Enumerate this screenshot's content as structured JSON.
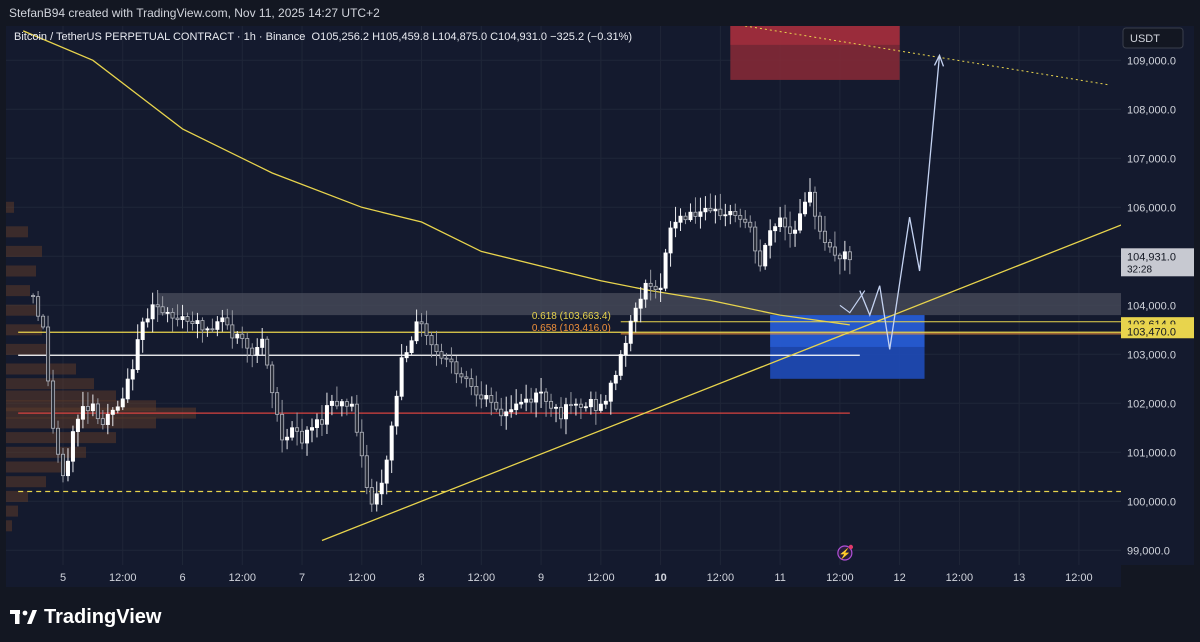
{
  "header": {
    "text": "StefanB94 created with TradingView.com, Nov 11, 2025 14:27 UTC+2"
  },
  "legend": {
    "symbol": "Bitcoin / TetherUS PERPETUAL CONTRACT · 1h · Binance",
    "open": "O105,256.2",
    "high": "H105,459.8",
    "low": "L104,875.0",
    "close": "C104,931.0",
    "change": "−325.2 (−0.31%)"
  },
  "currency": "USDT",
  "brand": "TradingView",
  "colors": {
    "bg": "#141a2e",
    "up": "#ffffff",
    "down": "#b2b5be",
    "yellow": "#e8d44d",
    "red": "#d8433f",
    "blue": "#2962ff",
    "orange": "#f7931a"
  },
  "chart_data": {
    "type": "candlestick",
    "timeframe": "1h",
    "ylim": [
      98700,
      109700
    ],
    "y_ticks": [
      {
        "v": 99000,
        "label": "99,000.0"
      },
      {
        "v": 100000,
        "label": "100,000.0"
      },
      {
        "v": 101000,
        "label": "101,000.0"
      },
      {
        "v": 102000,
        "label": "102,000.0"
      },
      {
        "v": 103000,
        "label": "103,000.0"
      },
      {
        "v": 104000,
        "label": "104,000.0"
      },
      {
        "v": 105000,
        "label": "105,000.0"
      },
      {
        "v": 106000,
        "label": "106,000.0"
      },
      {
        "v": 107000,
        "label": "107,000.0"
      },
      {
        "v": 108000,
        "label": "108,000.0"
      },
      {
        "v": 109000,
        "label": "109,000.0"
      }
    ],
    "x_ticks": [
      {
        "h": 0,
        "label": "5",
        "bold": false
      },
      {
        "h": 12,
        "label": "12:00",
        "bold": false
      },
      {
        "h": 24,
        "label": "6",
        "bold": false
      },
      {
        "h": 36,
        "label": "12:00",
        "bold": false
      },
      {
        "h": 48,
        "label": "7",
        "bold": false
      },
      {
        "h": 60,
        "label": "12:00",
        "bold": false
      },
      {
        "h": 72,
        "label": "8",
        "bold": false
      },
      {
        "h": 84,
        "label": "12:00",
        "bold": false
      },
      {
        "h": 96,
        "label": "9",
        "bold": false
      },
      {
        "h": 108,
        "label": "12:00",
        "bold": false
      },
      {
        "h": 120,
        "label": "10",
        "bold": true
      },
      {
        "h": 132,
        "label": "12:00",
        "bold": false
      },
      {
        "h": 144,
        "label": "11",
        "bold": false
      },
      {
        "h": 156,
        "label": "12:00",
        "bold": false
      },
      {
        "h": 168,
        "label": "12",
        "bold": false
      },
      {
        "h": 180,
        "label": "12:00",
        "bold": false
      },
      {
        "h": 192,
        "label": "13",
        "bold": false
      },
      {
        "h": 204,
        "label": "12:00",
        "bold": false
      }
    ],
    "anchors": [
      {
        "h": -6,
        "p": 104200
      },
      {
        "h": -4,
        "p": 103500
      },
      {
        "h": -2,
        "p": 101500
      },
      {
        "h": 0,
        "p": 100400
      },
      {
        "h": 2,
        "p": 101400
      },
      {
        "h": 4,
        "p": 101900
      },
      {
        "h": 6,
        "p": 102000
      },
      {
        "h": 8,
        "p": 101600
      },
      {
        "h": 10,
        "p": 101800
      },
      {
        "h": 12,
        "p": 102000
      },
      {
        "h": 14,
        "p": 102800
      },
      {
        "h": 16,
        "p": 103600
      },
      {
        "h": 18,
        "p": 104100
      },
      {
        "h": 20,
        "p": 103800
      },
      {
        "h": 22,
        "p": 103700
      },
      {
        "h": 24,
        "p": 103800
      },
      {
        "h": 26,
        "p": 103700
      },
      {
        "h": 28,
        "p": 103500
      },
      {
        "h": 30,
        "p": 103500
      },
      {
        "h": 32,
        "p": 103700
      },
      {
        "h": 34,
        "p": 103400
      },
      {
        "h": 36,
        "p": 103300
      },
      {
        "h": 38,
        "p": 103100
      },
      {
        "h": 40,
        "p": 103200
      },
      {
        "h": 42,
        "p": 102200
      },
      {
        "h": 44,
        "p": 101300
      },
      {
        "h": 46,
        "p": 101500
      },
      {
        "h": 48,
        "p": 101200
      },
      {
        "h": 50,
        "p": 101500
      },
      {
        "h": 52,
        "p": 101700
      },
      {
        "h": 54,
        "p": 102100
      },
      {
        "h": 56,
        "p": 102000
      },
      {
        "h": 58,
        "p": 102000
      },
      {
        "h": 60,
        "p": 100800
      },
      {
        "h": 62,
        "p": 99900
      },
      {
        "h": 64,
        "p": 100300
      },
      {
        "h": 66,
        "p": 101500
      },
      {
        "h": 68,
        "p": 102900
      },
      {
        "h": 70,
        "p": 103400
      },
      {
        "h": 72,
        "p": 103700
      },
      {
        "h": 74,
        "p": 103200
      },
      {
        "h": 76,
        "p": 103000
      },
      {
        "h": 78,
        "p": 102800
      },
      {
        "h": 80,
        "p": 102600
      },
      {
        "h": 82,
        "p": 102400
      },
      {
        "h": 84,
        "p": 102200
      },
      {
        "h": 86,
        "p": 101900
      },
      {
        "h": 88,
        "p": 101800
      },
      {
        "h": 90,
        "p": 101900
      },
      {
        "h": 92,
        "p": 102000
      },
      {
        "h": 94,
        "p": 102100
      },
      {
        "h": 96,
        "p": 102200
      },
      {
        "h": 98,
        "p": 102000
      },
      {
        "h": 100,
        "p": 101800
      },
      {
        "h": 102,
        "p": 101900
      },
      {
        "h": 104,
        "p": 101900
      },
      {
        "h": 106,
        "p": 102000
      },
      {
        "h": 108,
        "p": 101900
      },
      {
        "h": 110,
        "p": 102300
      },
      {
        "h": 112,
        "p": 103000
      },
      {
        "h": 114,
        "p": 103600
      },
      {
        "h": 116,
        "p": 104200
      },
      {
        "h": 118,
        "p": 104500
      },
      {
        "h": 120,
        "p": 104300
      },
      {
        "h": 122,
        "p": 105600
      },
      {
        "h": 124,
        "p": 105800
      },
      {
        "h": 126,
        "p": 105900
      },
      {
        "h": 128,
        "p": 105900
      },
      {
        "h": 130,
        "p": 105800
      },
      {
        "h": 132,
        "p": 105900
      },
      {
        "h": 134,
        "p": 105900
      },
      {
        "h": 136,
        "p": 105800
      },
      {
        "h": 138,
        "p": 105500
      },
      {
        "h": 140,
        "p": 104800
      },
      {
        "h": 142,
        "p": 105500
      },
      {
        "h": 144,
        "p": 105800
      },
      {
        "h": 146,
        "p": 105500
      },
      {
        "h": 148,
        "p": 105800
      },
      {
        "h": 150,
        "p": 106200
      },
      {
        "h": 152,
        "p": 105600
      },
      {
        "h": 154,
        "p": 105100
      },
      {
        "h": 156,
        "p": 105000
      },
      {
        "h": 158,
        "p": 104931
      }
    ],
    "ema": [
      {
        "h": -8,
        "p": 109600
      },
      {
        "h": 6,
        "p": 109000
      },
      {
        "h": 24,
        "p": 107600
      },
      {
        "h": 42,
        "p": 106700
      },
      {
        "h": 60,
        "p": 106000
      },
      {
        "h": 72,
        "p": 105700
      },
      {
        "h": 84,
        "p": 105100
      },
      {
        "h": 96,
        "p": 104800
      },
      {
        "h": 108,
        "p": 104500
      },
      {
        "h": 118,
        "p": 104300
      },
      {
        "h": 130,
        "p": 104100
      },
      {
        "h": 144,
        "p": 103800
      },
      {
        "h": 158,
        "p": 103600
      }
    ],
    "trendline": {
      "from": {
        "h": 52,
        "p": 99200
      },
      "to": {
        "h": 214,
        "p": 105700
      }
    },
    "resistance_line": {
      "from": {
        "h": 134,
        "p": 109750
      },
      "to": {
        "h": 210,
        "p": 108500
      }
    },
    "projection": [
      {
        "h": 160,
        "p": 104300
      },
      {
        "h": 162,
        "p": 103800
      },
      {
        "h": 164,
        "p": 104400
      },
      {
        "h": 166,
        "p": 103100
      },
      {
        "h": 170,
        "p": 105800
      },
      {
        "h": 172,
        "p": 104700
      },
      {
        "h": 176,
        "p": 109100
      }
    ],
    "small_projection": [
      {
        "h": 156,
        "p": 104000
      },
      {
        "h": 158,
        "p": 103850
      },
      {
        "h": 161,
        "p": 104300
      }
    ],
    "supply_zone": {
      "h1": 134,
      "h2": 168,
      "p_top": 109700,
      "p_bot": 108600
    },
    "demand_zone": {
      "h1": 142,
      "h2": 173,
      "p_top": 103800,
      "p_bot": 102500
    },
    "grey_zone": {
      "h1": 19,
      "h2": 220,
      "p_top": 104250,
      "p_bot": 103800
    },
    "fib_levels": [
      {
        "ratio": "0.618",
        "value": 103663.4,
        "label": "0.618 (103,663.4)",
        "color": "#e8d44d"
      },
      {
        "ratio": "0.658",
        "value": 103416.0,
        "label": "0.658 (103,416.0)",
        "color": "#f0903a"
      }
    ],
    "hlines": [
      {
        "p": 103450,
        "color": "#e8d44d",
        "h1": -9,
        "h2": 220,
        "dash": false
      },
      {
        "p": 102980,
        "color": "#ffffff",
        "h1": -9,
        "h2": 160,
        "dash": false
      },
      {
        "p": 101800,
        "color": "#d8433f",
        "h1": -9,
        "h2": 158,
        "dash": false
      },
      {
        "p": 100200,
        "color": "#e8d44d",
        "h1": -9,
        "h2": 220,
        "dash": true
      }
    ],
    "price_labels": [
      {
        "p": 105000,
        "text": "104,931.0",
        "sub": "32:28",
        "bg": "#c7c9d1",
        "fg": "#131722"
      },
      {
        "p": 103614.9,
        "text": "103,614.9",
        "bg": "#e8d44d",
        "fg": "#131722"
      },
      {
        "p": 103470.0,
        "text": "103,470.0",
        "bg": "#e8d44d",
        "fg": "#131722"
      }
    ]
  }
}
